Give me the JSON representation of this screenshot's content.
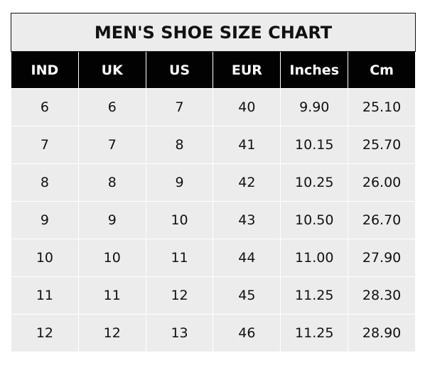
{
  "title": "MEN'S SHOE SIZE CHART",
  "columns": [
    "IND",
    "UK",
    "US",
    "EUR",
    "Inches",
    "Cm"
  ],
  "rows": [
    [
      "6",
      "6",
      "7",
      "40",
      "9.90",
      "25.10"
    ],
    [
      "7",
      "7",
      "8",
      "41",
      "10.15",
      "25.70"
    ],
    [
      "8",
      "8",
      "9",
      "42",
      "10.25",
      "26.00"
    ],
    [
      "9",
      "9",
      "10",
      "43",
      "10.50",
      "26.70"
    ],
    [
      "10",
      "10",
      "11",
      "44",
      "11.00",
      "27.90"
    ],
    [
      "11",
      "11",
      "12",
      "45",
      "11.25",
      "28.30"
    ],
    [
      "12",
      "12",
      "13",
      "46",
      "11.25",
      "28.90"
    ]
  ],
  "colors": {
    "header_bg": "#020202",
    "header_text": "#ffffff",
    "cell_bg": "#ececec",
    "border": "#111111"
  }
}
